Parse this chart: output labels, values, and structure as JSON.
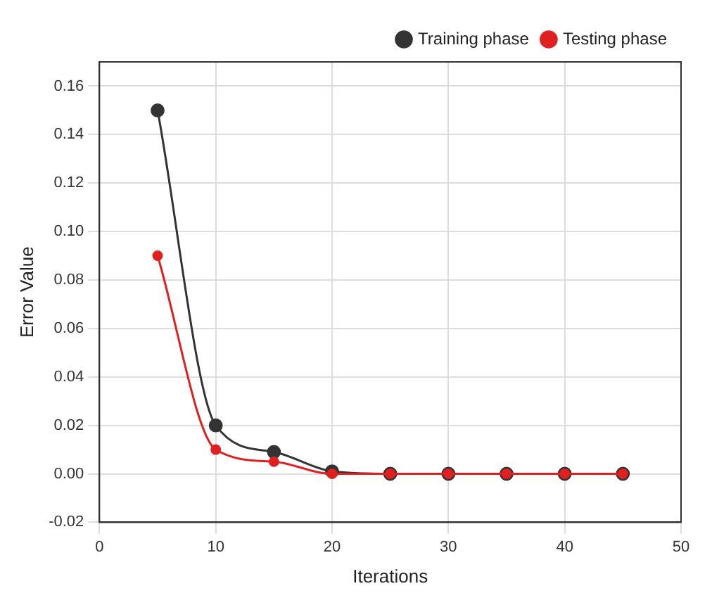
{
  "chart_data": {
    "type": "line",
    "xlabel": "Iterations",
    "ylabel": "Error Value",
    "x": [
      5,
      10,
      15,
      20,
      25,
      30,
      35,
      40,
      45
    ],
    "series": [
      {
        "name": "Training phase",
        "color": "#333333",
        "values": [
          0.15,
          0.02,
          0.009,
          0.001,
          0,
          0,
          0,
          0,
          0
        ]
      },
      {
        "name": "Testing phase",
        "color": "#e02020",
        "values": [
          0.09,
          0.01,
          0.005,
          0,
          0,
          0,
          0,
          0,
          0
        ]
      }
    ],
    "xlim": [
      0,
      50
    ],
    "xticks": [
      0,
      10,
      20,
      30,
      40,
      50
    ],
    "ylim": [
      -0.02,
      0.17
    ],
    "yticks": [
      {
        "value": -0.02,
        "label": "-0.02"
      },
      {
        "value": 0,
        "label": "0.00"
      },
      {
        "value": 0.02,
        "label": "0.02"
      },
      {
        "value": 0.04,
        "label": "0.04"
      },
      {
        "value": 0.06,
        "label": "0.06"
      },
      {
        "value": 0.08,
        "label": "0.08"
      },
      {
        "value": 0.1,
        "label": "0.10"
      },
      {
        "value": 0.12,
        "label": "0.12"
      },
      {
        "value": 0.14,
        "label": "0.14"
      },
      {
        "value": 0.16,
        "label": "0.16"
      }
    ],
    "grid": true,
    "legend": "top right",
    "marker": "circle",
    "line_style": "solid"
  }
}
